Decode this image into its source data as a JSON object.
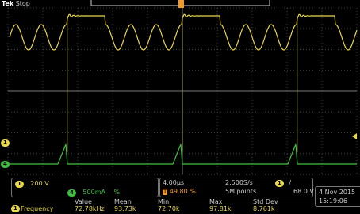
{
  "header": {
    "brand": "Tek",
    "status": "Stop"
  },
  "markers": {
    "ch1": "1",
    "ch4": "4"
  },
  "channels": [
    {
      "number": "1",
      "scale": "200 V"
    },
    {
      "number": "4",
      "scale": "500mA",
      "suffix": "%"
    }
  ],
  "timebase": {
    "scale": "4.00µs",
    "trigger_position": "49.80 %",
    "sample_rate": "2.500S/s",
    "record_length": "5M points"
  },
  "trigger": {
    "source": "1",
    "slope": "/",
    "level": "68.0 V"
  },
  "datetime": {
    "date": "4 Nov 2015",
    "time": "15:19:06"
  },
  "measurements": {
    "headers": [
      "Value",
      "Mean",
      "Min",
      "Max",
      "Std Dev"
    ],
    "rows": [
      {
        "source": "1",
        "name": "Frequency",
        "values": [
          "72.78kHz",
          "93.73k",
          "72.70k",
          "97.81k",
          "8.761k"
        ]
      }
    ]
  }
}
